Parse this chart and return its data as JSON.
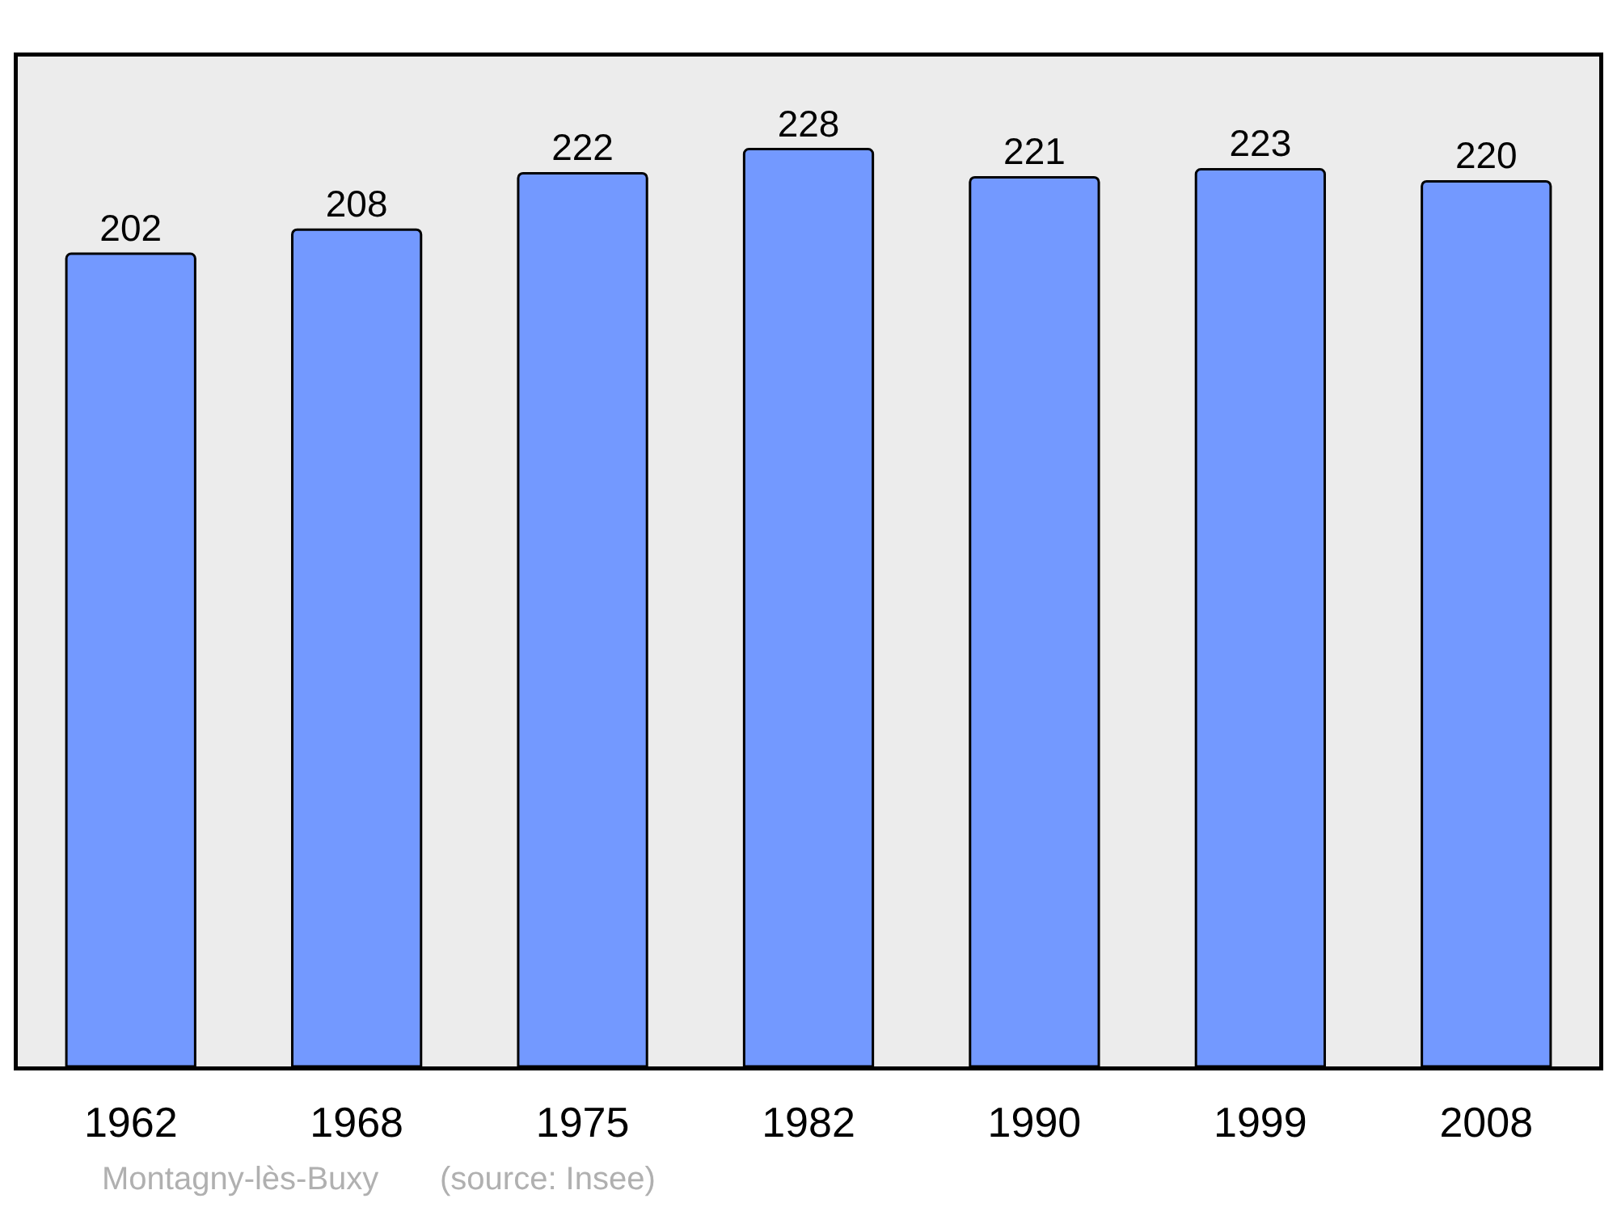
{
  "chart_data": {
    "type": "bar",
    "categories": [
      "1962",
      "1968",
      "1975",
      "1982",
      "1990",
      "1999",
      "2008"
    ],
    "values": [
      202,
      208,
      222,
      228,
      221,
      223,
      220
    ],
    "color": "#7399ff",
    "data_labels": true,
    "ylim": [
      0,
      251
    ],
    "tick_labels": "x",
    "annotations": [
      "Montagny-lès-Buxy",
      "(source: Insee)"
    ]
  }
}
